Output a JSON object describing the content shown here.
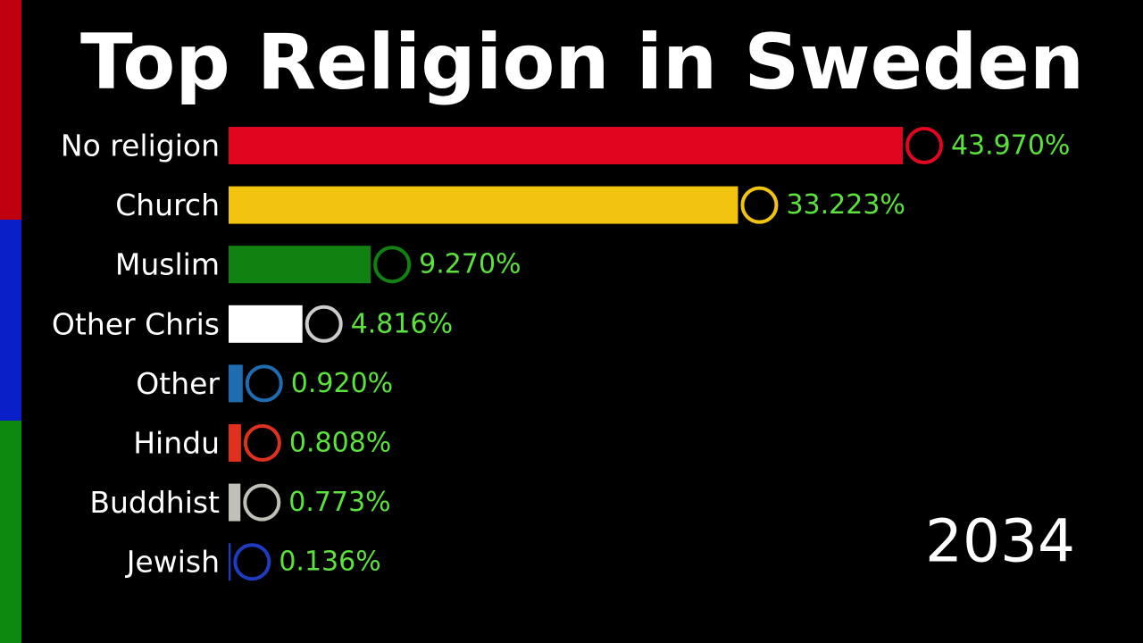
{
  "chart_data": {
    "type": "bar",
    "title": "Top Religion in Sweden",
    "categories": [
      "No religion",
      "Church",
      "Muslim",
      "Other Chris",
      "Other",
      "Hindu",
      "Buddhist",
      "Jewish"
    ],
    "values": [
      43.97,
      33.223,
      9.27,
      4.816,
      0.92,
      0.808,
      0.773,
      0.136
    ],
    "value_labels": [
      "43.970%",
      "33.223%",
      "9.270%",
      "4.816%",
      "0.920%",
      "0.808%",
      "0.773%",
      "0.136%"
    ],
    "colors": [
      "#e0061f",
      "#f2c40f",
      "#118211",
      "#ffffff",
      "#1f6cb0",
      "#e0301e",
      "#c0c0b8",
      "#1f3cc0"
    ],
    "year": "2034"
  }
}
